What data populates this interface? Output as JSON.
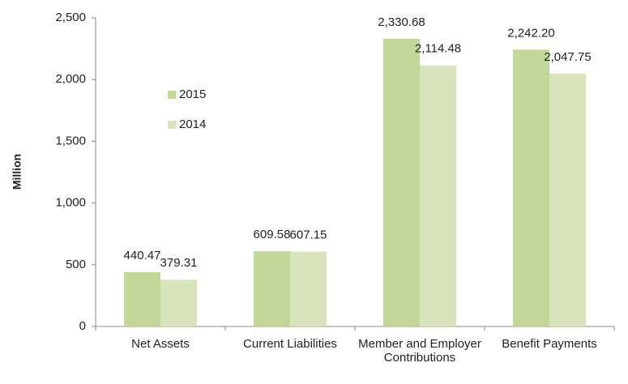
{
  "chart_data": {
    "type": "bar",
    "y_label": "Million",
    "categories": [
      "Net Assets",
      "Current Liabilities",
      "Member and Employer Contributions",
      "Benefit Payments"
    ],
    "series": [
      {
        "name": "2015",
        "color": "#c4d79b",
        "values": [
          440.47,
          609.58,
          2330.68,
          2242.2
        ],
        "value_labels": [
          "440.47",
          "609.58",
          "2,330.68",
          "2,242.20"
        ]
      },
      {
        "name": "2014",
        "color": "#d8e4bc",
        "values": [
          379.31,
          607.15,
          2114.48,
          2047.75
        ],
        "value_labels": [
          "379.31",
          "607.15",
          "2,114.48",
          "2,047.75"
        ]
      }
    ],
    "ylim": [
      0,
      2500
    ],
    "yticks": [
      0,
      500,
      {
        "value": 1000,
        "label": "1,000"
      },
      {
        "value": 1500,
        "label": "1,500"
      },
      {
        "value": 2000,
        "label": "2,000"
      },
      {
        "value": 2500,
        "label": "2,500"
      }
    ],
    "grid": false,
    "legend": "left"
  }
}
